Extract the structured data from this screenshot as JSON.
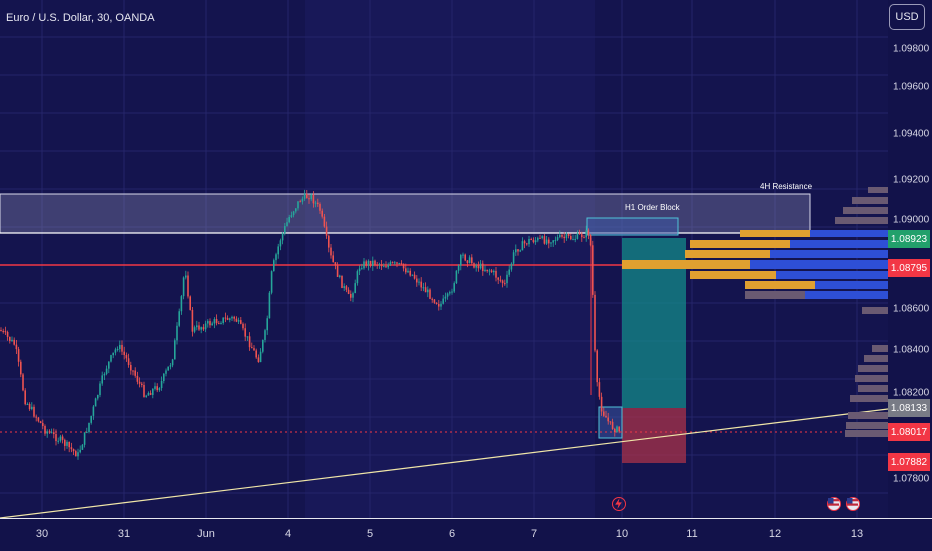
{
  "header": {
    "title": "Euro / U.S. Dollar, 30, OANDA",
    "currency_button": "USD"
  },
  "price_axis": {
    "ticks": [
      "1.09800",
      "1.09600",
      "1.09400",
      "1.09200",
      "1.09000",
      "1.08600",
      "1.08400",
      "1.08200",
      "1.07800"
    ]
  },
  "time_axis": {
    "ticks": [
      "30",
      "31",
      "Jun",
      "4",
      "5",
      "6",
      "7",
      "10",
      "11",
      "12",
      "13"
    ]
  },
  "badges": {
    "green": {
      "label": "1.08923",
      "color": "#22a06b"
    },
    "red": {
      "label": "1.08795",
      "color": "#f23645"
    },
    "last": {
      "label": "1.08133",
      "color": "#787b86"
    },
    "current": {
      "label": "1.08017",
      "color": "#f23645"
    },
    "stop": {
      "label": "1.07882",
      "color": "#f23645"
    }
  },
  "annotations": {
    "order_block": "H1 Order Block",
    "resistance": "4H Resistance"
  },
  "colors": {
    "bull": "#26a69a",
    "bear": "#ef5350",
    "accent": "#f23645"
  },
  "icons": {
    "lightning": "lightning-icon",
    "us_flag": "us-flag-icon"
  }
}
